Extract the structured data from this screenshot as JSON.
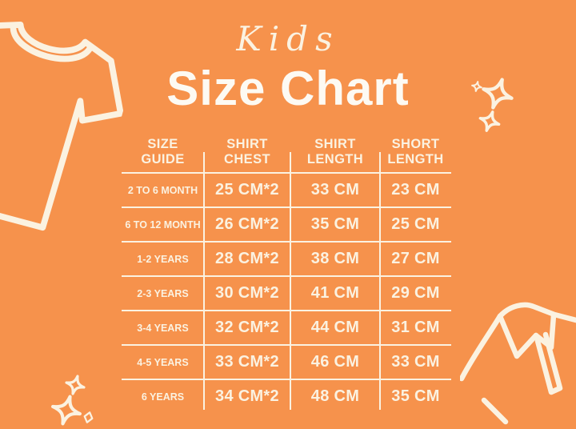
{
  "colors": {
    "background": "#F6924C",
    "ink": "#FBF2E1",
    "title": "#FDFAF3"
  },
  "header": {
    "script_title": "Kids",
    "title": "Size Chart"
  },
  "table": {
    "columns": [
      {
        "line1": "SIZE",
        "line2": "GUIDE"
      },
      {
        "line1": "SHIRT",
        "line2": "CHEST"
      },
      {
        "line1": "SHIRT",
        "line2": "LENGTH"
      },
      {
        "line1": "SHORT",
        "line2": "LENGTH"
      }
    ],
    "rows": [
      {
        "size": "2 TO 6 MONTH",
        "chest": "25 CM*2",
        "shirt_length": "33 CM",
        "short_length": "23 CM"
      },
      {
        "size": "6 TO 12 MONTH",
        "chest": "26 CM*2",
        "shirt_length": "35 CM",
        "short_length": "25 CM"
      },
      {
        "size": "1-2 YEARS",
        "chest": "28 CM*2",
        "shirt_length": "38 CM",
        "short_length": "27 CM"
      },
      {
        "size": "2-3 YEARS",
        "chest": "30 CM*2",
        "shirt_length": "41 CM",
        "short_length": "29 CM"
      },
      {
        "size": "3-4 YEARS",
        "chest": "32 CM*2",
        "shirt_length": "44 CM",
        "short_length": "31 CM"
      },
      {
        "size": "4-5 YEARS",
        "chest": "33 CM*2",
        "shirt_length": "46 CM",
        "short_length": "33 CM"
      },
      {
        "size": "6 YEARS",
        "chest": "34 CM*2",
        "shirt_length": "48 CM",
        "short_length": "35 CM"
      }
    ]
  },
  "chart_data": {
    "type": "table",
    "title": "Kids Size Chart",
    "columns": [
      "SIZE GUIDE",
      "SHIRT CHEST",
      "SHIRT LENGTH",
      "SHORT LENGTH"
    ],
    "rows": [
      [
        "2 TO 6 MONTH",
        "25 CM*2",
        "33 CM",
        "23 CM"
      ],
      [
        "6 TO 12 MONTH",
        "26 CM*2",
        "35 CM",
        "25 CM"
      ],
      [
        "1-2 YEARS",
        "28 CM*2",
        "38 CM",
        "27 CM"
      ],
      [
        "2-3 YEARS",
        "30 CM*2",
        "41 CM",
        "29 CM"
      ],
      [
        "3-4 YEARS",
        "32 CM*2",
        "44 CM",
        "31 CM"
      ],
      [
        "4-5 YEARS",
        "33 CM*2",
        "46 CM",
        "33 CM"
      ],
      [
        "6 YEARS",
        "34 CM*2",
        "48 CM",
        "35 CM"
      ]
    ],
    "units": "CM"
  },
  "decorations": {
    "top_left_icon": "tshirt-outline-icon",
    "top_right_icon": "sparkles-icon",
    "bottom_left_icon": "sparkles-icon",
    "bottom_right_icon": "polo-shirt-outline-icon"
  }
}
